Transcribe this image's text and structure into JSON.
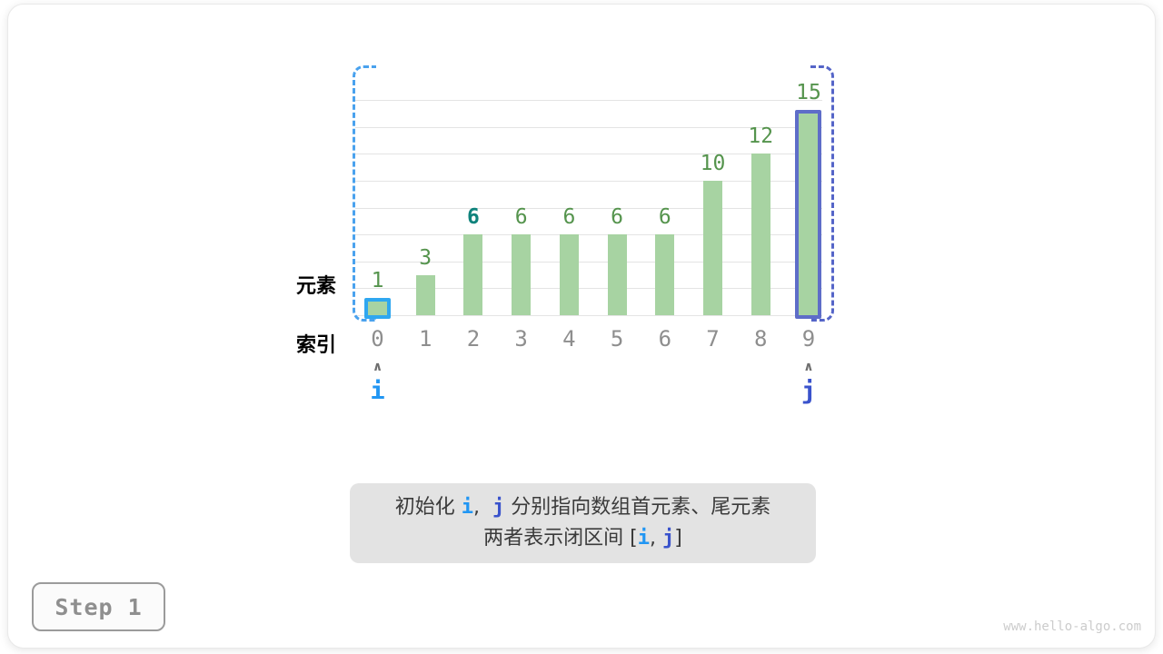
{
  "chart_data": {
    "type": "bar",
    "categories": [
      "0",
      "1",
      "2",
      "3",
      "4",
      "5",
      "6",
      "7",
      "8",
      "9"
    ],
    "values": [
      1,
      3,
      6,
      6,
      6,
      6,
      6,
      10,
      12,
      15
    ],
    "title": "",
    "xlabel": "索引",
    "ylabel": "元素",
    "ylim": [
      0,
      16
    ],
    "gridline_step": 2,
    "grid": true,
    "legend": "none",
    "bar_fill_color": "#a7d3a2",
    "value_label_color": "#55944d",
    "index_label_color": "#8e8e8e",
    "ylabel_color": "#55944d",
    "xlabel_color": "#9e9e9e",
    "gridline_color": "#e4e4e4",
    "highlighted_bars": [
      {
        "index": 0,
        "border_color": "#2fa7f0",
        "meaning": "pointer i position"
      },
      {
        "index": 9,
        "border_color": "#5e6dc8",
        "meaning": "pointer j position"
      }
    ],
    "highlighted_value_label": {
      "index": 2,
      "color": "#0f837c",
      "bold": true
    },
    "range_brackets": [
      {
        "side": "left",
        "color": "#4aa2ee"
      },
      {
        "side": "right",
        "color": "#5565c8"
      }
    ]
  },
  "pointers": [
    {
      "label": "i",
      "index": 0,
      "color": "#2196f3",
      "caret": "∧"
    },
    {
      "label": "j",
      "index": 9,
      "color": "#3a53cc",
      "caret": "∧"
    }
  ],
  "caption": {
    "bg_color": "#e3e3e3",
    "line1_parts": [
      {
        "text": "初始化 ",
        "style": "plain"
      },
      {
        "text": "i",
        "style": "i"
      },
      {
        "text": ",  ",
        "style": "plain"
      },
      {
        "text": "j",
        "style": "j"
      },
      {
        "text": " 分别指向数组首元素、尾元素",
        "style": "plain"
      }
    ],
    "line2_parts": [
      {
        "text": "两者表示闭区间 [",
        "style": "plain"
      },
      {
        "text": "i",
        "style": "i"
      },
      {
        "text": ", ",
        "style": "plain"
      },
      {
        "text": "j",
        "style": "j"
      },
      {
        "text": "]",
        "style": "plain"
      }
    ],
    "pointer_i_color": "#2196f3",
    "pointer_j_color": "#3a53cc"
  },
  "step_badge": {
    "label": "Step 1"
  },
  "watermark": "www.hello-algo.com"
}
